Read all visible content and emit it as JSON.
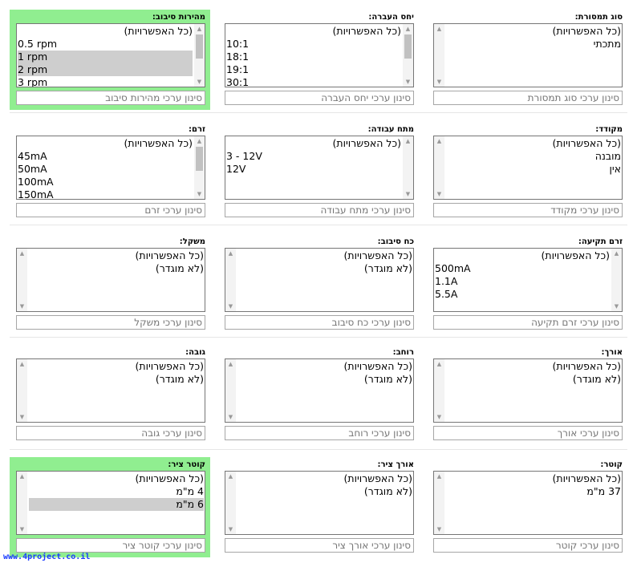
{
  "all_options": "(כל האפשרויות)",
  "filters": [
    {
      "label": "סוג תמסורת:",
      "placeholder": "סינון ערכי סוג תמסורת",
      "highlight": false,
      "options": [
        {
          "t": "מתכתי",
          "rtl": true,
          "sel": false
        }
      ]
    },
    {
      "label": "יחס העברה:",
      "placeholder": "סינון ערכי יחס העברה",
      "highlight": false,
      "options": [
        {
          "t": "10:1",
          "rtl": false,
          "sel": false
        },
        {
          "t": "18:1",
          "rtl": false,
          "sel": false
        },
        {
          "t": "19:1",
          "rtl": false,
          "sel": false
        },
        {
          "t": "30:1",
          "rtl": false,
          "sel": false
        }
      ]
    },
    {
      "label": "מהירות סיבוב:",
      "placeholder": "סינון ערכי מהירות סיבוב",
      "highlight": true,
      "options": [
        {
          "t": "0.5 rpm",
          "rtl": false,
          "sel": false
        },
        {
          "t": "1 rpm",
          "rtl": false,
          "sel": true
        },
        {
          "t": "2 rpm",
          "rtl": false,
          "sel": true
        },
        {
          "t": "3 rpm",
          "rtl": false,
          "sel": false
        }
      ]
    },
    {
      "label": "מקודד:",
      "placeholder": "סינון ערכי מקודד",
      "highlight": false,
      "options": [
        {
          "t": "מובנה",
          "rtl": true,
          "sel": false
        },
        {
          "t": "אין",
          "rtl": true,
          "sel": false
        }
      ]
    },
    {
      "label": "מתח עבודה:",
      "placeholder": "סינון ערכי מתח עבודה",
      "highlight": false,
      "options": [
        {
          "t": "3 - 12V",
          "rtl": false,
          "sel": false
        },
        {
          "t": "12V",
          "rtl": false,
          "sel": false
        }
      ]
    },
    {
      "label": "זרם:",
      "placeholder": "סינון ערכי זרם",
      "highlight": false,
      "options": [
        {
          "t": "45mA",
          "rtl": false,
          "sel": false
        },
        {
          "t": "50mA",
          "rtl": false,
          "sel": false
        },
        {
          "t": "100mA",
          "rtl": false,
          "sel": false
        },
        {
          "t": "150mA",
          "rtl": false,
          "sel": false
        }
      ]
    },
    {
      "label": "זרם תקיעה:",
      "placeholder": "סינון ערכי זרם תקיעה",
      "highlight": false,
      "options": [
        {
          "t": "500mA",
          "rtl": false,
          "sel": false
        },
        {
          "t": "1.1A",
          "rtl": false,
          "sel": false
        },
        {
          "t": "5.5A",
          "rtl": false,
          "sel": false
        }
      ]
    },
    {
      "label": "כח סיבוב:",
      "placeholder": "סינון ערכי כח סיבוב",
      "highlight": false,
      "options": [
        {
          "t": "(לא מוגדר)",
          "rtl": true,
          "sel": false
        }
      ]
    },
    {
      "label": "משקל:",
      "placeholder": "סינון ערכי משקל",
      "highlight": false,
      "options": [
        {
          "t": "(לא מוגדר)",
          "rtl": true,
          "sel": false
        }
      ]
    },
    {
      "label": "אורך:",
      "placeholder": "סינון ערכי אורך",
      "highlight": false,
      "options": [
        {
          "t": "(לא מוגדר)",
          "rtl": true,
          "sel": false
        }
      ]
    },
    {
      "label": "רוחב:",
      "placeholder": "סינון ערכי רוחב",
      "highlight": false,
      "options": [
        {
          "t": "(לא מוגדר)",
          "rtl": true,
          "sel": false
        }
      ]
    },
    {
      "label": "גובה:",
      "placeholder": "סינון ערכי גובה",
      "highlight": false,
      "options": [
        {
          "t": "(לא מוגדר)",
          "rtl": true,
          "sel": false
        }
      ]
    },
    {
      "label": "קוטר:",
      "placeholder": "סינון ערכי קוטר",
      "highlight": false,
      "options": [
        {
          "t": "37 מ\"מ",
          "rtl": true,
          "sel": false
        }
      ]
    },
    {
      "label": "אורך ציר:",
      "placeholder": "סינון ערכי אורך ציר",
      "highlight": false,
      "options": [
        {
          "t": "(לא מוגדר)",
          "rtl": true,
          "sel": false
        }
      ]
    },
    {
      "label": "קוטר ציר:",
      "placeholder": "סינון ערכי קוטר ציר",
      "highlight": true,
      "options": [
        {
          "t": "4 מ\"מ",
          "rtl": true,
          "sel": false
        },
        {
          "t": "6 מ\"מ",
          "rtl": true,
          "sel": true
        }
      ]
    }
  ],
  "footer": "www.4project.co.il"
}
